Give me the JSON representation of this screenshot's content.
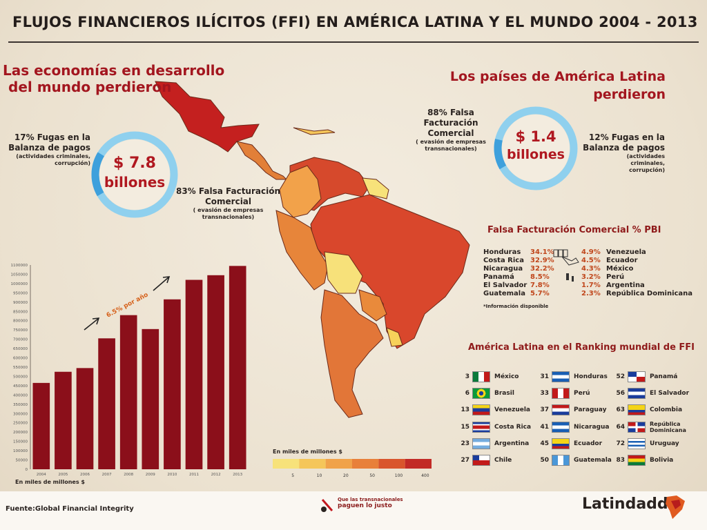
{
  "title": "FLUJOS FINANCIEROS ILÍCITOS (FFI) EN AMÉRICA LATINA Y EL MUNDO 2004 - 2013",
  "developing": {
    "heading_line1": "Las economías en desarrollo",
    "heading_line2": "del mundo perdieron",
    "total_value": "$ 7.8",
    "total_unit": "billones",
    "leak_pct": "17% Fugas en la",
    "leak_label": "Balanza de pagos",
    "leak_note1": "(actividades criminales,",
    "leak_note2": "corrupción)",
    "fake_pct": "83% Falsa Facturación",
    "fake_label": "Comercial",
    "fake_note1": "( evasión de empresas",
    "fake_note2": "transnacionales)",
    "share_leak": 0.17
  },
  "latam": {
    "heading_line1": "Los países de América  Latina",
    "heading_line2": "perdieron",
    "total_value": "$ 1.4",
    "total_unit": "billones",
    "fake_pct": "88% Falsa Facturación",
    "fake_label": "Comercial",
    "fake_note1": "( evasión de empresas",
    "fake_note2": "transnacionales)",
    "leak_pct": "12% Fugas en la",
    "leak_label": "Balanza de pagos",
    "leak_note1": "(actividades",
    "leak_note2": "criminales,",
    "leak_note3": "corrupción)",
    "share_leak": 0.12
  },
  "fake_invoicing": {
    "title": "Falsa Facturación Comercial % PBI",
    "left": [
      {
        "country": "Honduras",
        "value": "34.1%"
      },
      {
        "country": "Costa Rica",
        "value": "32.9%"
      },
      {
        "country": "Nicaragua",
        "value": "32.2%"
      },
      {
        "country": "Panamá",
        "value": "8.5%"
      },
      {
        "country": "El Salvador",
        "value": "7.8%"
      },
      {
        "country": "Guatemala",
        "value": "5.7%"
      }
    ],
    "right": [
      {
        "country": "Venezuela",
        "value": "4.9%"
      },
      {
        "country": "Ecuador",
        "value": "4.5%"
      },
      {
        "country": "México",
        "value": "4.3%"
      },
      {
        "country": "Perú",
        "value": "3.2%"
      },
      {
        "country": "Argentina",
        "value": "1.7%"
      },
      {
        "country": "República Dominicana",
        "value": "2.3%"
      }
    ],
    "footnote": "*Información disponible"
  },
  "ranking": {
    "title": "América Latina en el Ranking mundial de FFI",
    "items": [
      {
        "rank": "3",
        "country": "México",
        "flag": "mexico"
      },
      {
        "rank": "6",
        "country": "Brasil",
        "flag": "brazil"
      },
      {
        "rank": "13",
        "country": "Venezuela",
        "flag": "venezuela"
      },
      {
        "rank": "15",
        "country": "Costa Rica",
        "flag": "costa-rica"
      },
      {
        "rank": "23",
        "country": "Argentina",
        "flag": "argentina"
      },
      {
        "rank": "27",
        "country": "Chile",
        "flag": "chile"
      },
      {
        "rank": "31",
        "country": "Honduras",
        "flag": "honduras"
      },
      {
        "rank": "33",
        "country": "Perú",
        "flag": "peru"
      },
      {
        "rank": "37",
        "country": "Paraguay",
        "flag": "paraguay"
      },
      {
        "rank": "41",
        "country": "Nicaragua",
        "flag": "nicaragua"
      },
      {
        "rank": "45",
        "country": "Ecuador",
        "flag": "ecuador"
      },
      {
        "rank": "50",
        "country": "Guatemala",
        "flag": "guatemala"
      },
      {
        "rank": "52",
        "country": "Panamá",
        "flag": "panama"
      },
      {
        "rank": "56",
        "country": "El Salvador",
        "flag": "el-salvador"
      },
      {
        "rank": "63",
        "country": "Colombia",
        "flag": "colombia"
      },
      {
        "rank": "64",
        "country": "República Dominicana",
        "flag": "dominican-republic"
      },
      {
        "rank": "72",
        "country": "Uruguay",
        "flag": "uruguay"
      },
      {
        "rank": "83",
        "country": "Bolivia",
        "flag": "bolivia"
      }
    ]
  },
  "map_scale": {
    "title": "En miles de millones $",
    "ticks": [
      "5",
      "10",
      "20",
      "50",
      "100",
      "400"
    ],
    "colors": [
      "#f7e27a",
      "#f5c65a",
      "#f0a24a",
      "#e8803a",
      "#d9552c",
      "#c22a26"
    ]
  },
  "chart_data": {
    "type": "bar",
    "categories": [
      "2004",
      "2005",
      "2006",
      "2007",
      "2008",
      "2009",
      "2010",
      "2011",
      "2012",
      "2013"
    ],
    "values": [
      465000,
      525000,
      545000,
      705000,
      830000,
      755000,
      915000,
      1020000,
      1045000,
      1095000
    ],
    "ylim": [
      0,
      1100000
    ],
    "yticks": [
      "0",
      "50000",
      "100000",
      "150000",
      "200000",
      "250000",
      "300000",
      "350000",
      "400000",
      "450000",
      "500000",
      "550000",
      "600000",
      "650000",
      "700000",
      "750000",
      "800000",
      "850000",
      "900000",
      "950000",
      "1000000",
      "1050000",
      "1100000"
    ],
    "xlabel": "En miles de millones $",
    "annotation": "6.5% por año",
    "bar_color": "#8b0f1a"
  },
  "footer": {
    "source": "Fuente:Global Financial Integrity",
    "campaign_line1": "Que las transnacionales",
    "campaign_line2": "paguen lo justo",
    "logo": "Latindadd"
  }
}
